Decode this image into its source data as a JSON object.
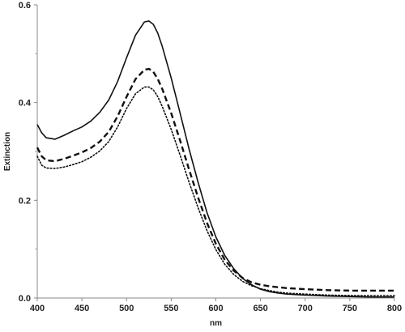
{
  "chart_data": {
    "type": "line",
    "title": "",
    "xlabel": "nm",
    "ylabel": "Extinction",
    "xlim": [
      400,
      800
    ],
    "ylim": [
      0,
      0.6
    ],
    "xticks": [
      400,
      450,
      500,
      550,
      600,
      650,
      700,
      750,
      800
    ],
    "yticks": [
      0.0,
      0.2,
      0.4,
      0.6
    ],
    "xtick_labels": [
      "400",
      "450",
      "500",
      "550",
      "600",
      "650",
      "700",
      "750",
      "800"
    ],
    "ytick_labels": [
      "0.0",
      "0.2",
      "0.4",
      "0.6"
    ],
    "grid": false,
    "legend": "none",
    "series": [
      {
        "style": "solid",
        "x": [
          400,
          405,
          410,
          420,
          430,
          440,
          450,
          460,
          470,
          480,
          490,
          500,
          510,
          520,
          525,
          530,
          535,
          540,
          550,
          560,
          570,
          580,
          590,
          600,
          610,
          620,
          630,
          640,
          650,
          660,
          670,
          680,
          690,
          700,
          725,
          750,
          775,
          800
        ],
        "y": [
          0.355,
          0.338,
          0.328,
          0.325,
          0.333,
          0.342,
          0.35,
          0.362,
          0.38,
          0.405,
          0.443,
          0.492,
          0.538,
          0.565,
          0.567,
          0.56,
          0.542,
          0.515,
          0.45,
          0.378,
          0.305,
          0.237,
          0.175,
          0.125,
          0.087,
          0.06,
          0.04,
          0.027,
          0.018,
          0.013,
          0.01,
          0.008,
          0.007,
          0.006,
          0.004,
          0.003,
          0.002,
          0.002
        ]
      },
      {
        "style": "dashed",
        "x": [
          400,
          405,
          410,
          420,
          430,
          440,
          450,
          460,
          470,
          480,
          490,
          500,
          510,
          520,
          525,
          530,
          535,
          540,
          550,
          560,
          570,
          580,
          590,
          600,
          610,
          620,
          630,
          640,
          650,
          660,
          670,
          680,
          690,
          700,
          725,
          750,
          775,
          800
        ],
        "y": [
          0.308,
          0.29,
          0.282,
          0.28,
          0.285,
          0.291,
          0.298,
          0.307,
          0.32,
          0.34,
          0.372,
          0.412,
          0.448,
          0.467,
          0.469,
          0.463,
          0.448,
          0.428,
          0.378,
          0.322,
          0.263,
          0.206,
          0.154,
          0.111,
          0.078,
          0.056,
          0.041,
          0.032,
          0.027,
          0.024,
          0.022,
          0.02,
          0.019,
          0.018,
          0.016,
          0.015,
          0.015,
          0.015
        ]
      },
      {
        "style": "dotted",
        "x": [
          400,
          405,
          410,
          420,
          430,
          440,
          450,
          460,
          470,
          480,
          490,
          500,
          510,
          520,
          525,
          530,
          535,
          540,
          550,
          560,
          570,
          580,
          590,
          600,
          610,
          620,
          630,
          640,
          650,
          660,
          670,
          680,
          690,
          700,
          725,
          750,
          775,
          800
        ],
        "y": [
          0.29,
          0.272,
          0.266,
          0.265,
          0.268,
          0.273,
          0.279,
          0.288,
          0.301,
          0.32,
          0.35,
          0.388,
          0.418,
          0.432,
          0.432,
          0.426,
          0.412,
          0.392,
          0.345,
          0.292,
          0.237,
          0.185,
          0.138,
          0.099,
          0.069,
          0.048,
          0.034,
          0.025,
          0.019,
          0.015,
          0.012,
          0.01,
          0.009,
          0.008,
          0.006,
          0.005,
          0.005,
          0.005
        ]
      }
    ]
  }
}
